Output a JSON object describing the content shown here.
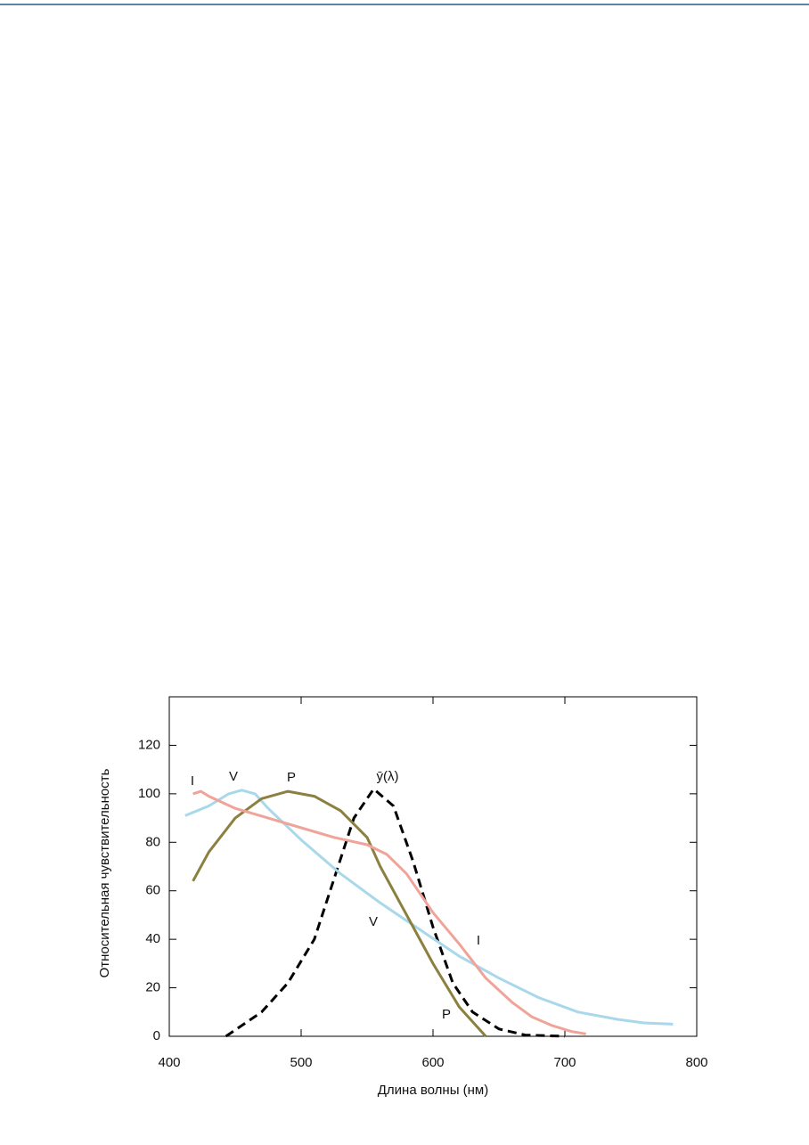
{
  "chart_data": {
    "type": "line",
    "x_label": "Длина волны (нм)",
    "y_label": "Относительная чувствительность",
    "xlim": [
      400,
      800
    ],
    "xticks": [
      400,
      500,
      600,
      700,
      800
    ],
    "ylim": [
      0,
      140
    ],
    "yticks": [
      0,
      20,
      40,
      60,
      80,
      100,
      120
    ],
    "series": [
      {
        "name": "ȳ(λ)",
        "color": "#000000",
        "dashed": true,
        "x": [
          443,
          470,
          490,
          510,
          525,
          540,
          555,
          570,
          585,
          600,
          615,
          630,
          650,
          670,
          700
        ],
        "values": [
          0,
          10,
          22,
          40,
          65,
          90,
          102,
          95,
          72,
          45,
          22,
          10,
          3,
          0.5,
          0
        ]
      },
      {
        "name": "V",
        "color": "#a8d8ea",
        "dashed": false,
        "x": [
          412,
          430,
          445,
          455,
          465,
          475,
          500,
          530,
          560,
          590,
          620,
          650,
          680,
          710,
          740,
          760,
          782
        ],
        "values": [
          91,
          95,
          100,
          101.5,
          100,
          94,
          81,
          67,
          55,
          44,
          33,
          24,
          16,
          10,
          7,
          5.5,
          5
        ]
      },
      {
        "name": "P",
        "color": "#8b8040",
        "dashed": false,
        "x": [
          418,
          430,
          450,
          470,
          490,
          510,
          530,
          550,
          560,
          580,
          600,
          620,
          640
        ],
        "values": [
          64,
          76,
          90,
          98,
          101,
          99,
          93,
          82,
          70,
          50,
          30,
          12,
          0
        ]
      },
      {
        "name": "I",
        "color": "#f0a399",
        "dashed": false,
        "x": [
          418,
          424,
          430,
          450,
          475,
          500,
          525,
          550,
          565,
          580,
          600,
          620,
          640,
          660,
          675,
          690,
          705,
          716
        ],
        "values": [
          100,
          101,
          99,
          94,
          90,
          86,
          82,
          79,
          75,
          67,
          51,
          38,
          24,
          14,
          8,
          4.5,
          2,
          1
        ]
      }
    ]
  }
}
